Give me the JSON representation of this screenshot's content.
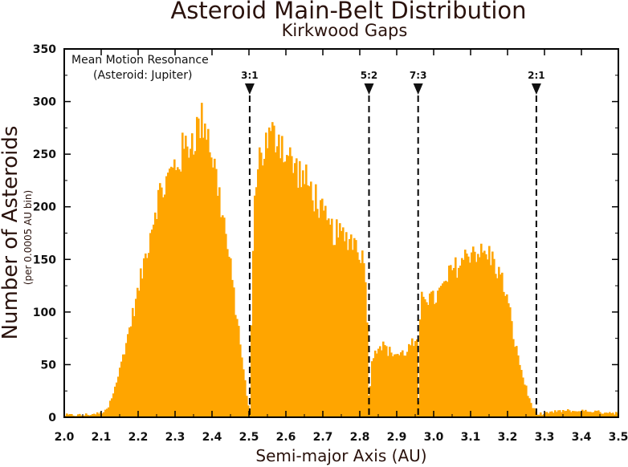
{
  "chart_data": {
    "type": "bar",
    "title": "Asteroid Main-Belt Distribution",
    "subtitle": "Kirkwood Gaps",
    "xlabel": "Semi-major Axis (AU)",
    "ylabel": "Number of Asteroids",
    "ylabel_sub": "(per 0.0005 AU bin)",
    "xlim": [
      2.0,
      3.5
    ],
    "ylim": [
      0,
      350
    ],
    "grid": false,
    "bar_color": "#ffa500",
    "x_ticks": [
      "2.0",
      "2.1",
      "2.2",
      "2.3",
      "2.4",
      "2.5",
      "2.6",
      "2.7",
      "2.8",
      "2.9",
      "3.0",
      "3.1",
      "3.2",
      "3.3",
      "3.4",
      "3.5"
    ],
    "y_ticks": [
      "0",
      "50",
      "100",
      "150",
      "200",
      "250",
      "300",
      "350"
    ],
    "annotation_lines": [
      "Mean Motion Resonance",
      "(Asteroid: Jupiter)"
    ],
    "resonances": [
      {
        "label": "3:1",
        "x": 2.502
      },
      {
        "label": "5:2",
        "x": 2.825
      },
      {
        "label": "7:3",
        "x": 2.958
      },
      {
        "label": "2:1",
        "x": 3.278
      }
    ],
    "profile": {
      "x": [
        2.0,
        2.05,
        2.1,
        2.12,
        2.15,
        2.2,
        2.25,
        2.3,
        2.35,
        2.38,
        2.4,
        2.43,
        2.45,
        2.48,
        2.495,
        2.502,
        2.51,
        2.52,
        2.55,
        2.58,
        2.6,
        2.63,
        2.65,
        2.68,
        2.7,
        2.72,
        2.75,
        2.78,
        2.8,
        2.815,
        2.822,
        2.825,
        2.83,
        2.84,
        2.86,
        2.88,
        2.9,
        2.92,
        2.94,
        2.955,
        2.958,
        2.965,
        2.98,
        3.0,
        3.02,
        3.05,
        3.08,
        3.1,
        3.13,
        3.15,
        3.18,
        3.2,
        3.22,
        3.24,
        3.26,
        3.275,
        3.28,
        3.3,
        3.35,
        3.4,
        3.45,
        3.5
      ],
      "values": [
        2,
        2,
        4,
        10,
        45,
        120,
        205,
        240,
        268,
        285,
        250,
        190,
        140,
        60,
        15,
        2,
        150,
        240,
        262,
        270,
        250,
        235,
        225,
        210,
        190,
        178,
        172,
        170,
        160,
        140,
        60,
        3,
        45,
        65,
        70,
        62,
        60,
        60,
        70,
        68,
        3,
        125,
        115,
        112,
        120,
        140,
        150,
        160,
        155,
        155,
        135,
        110,
        70,
        40,
        15,
        5,
        2,
        4,
        6,
        6,
        5,
        4
      ]
    }
  }
}
